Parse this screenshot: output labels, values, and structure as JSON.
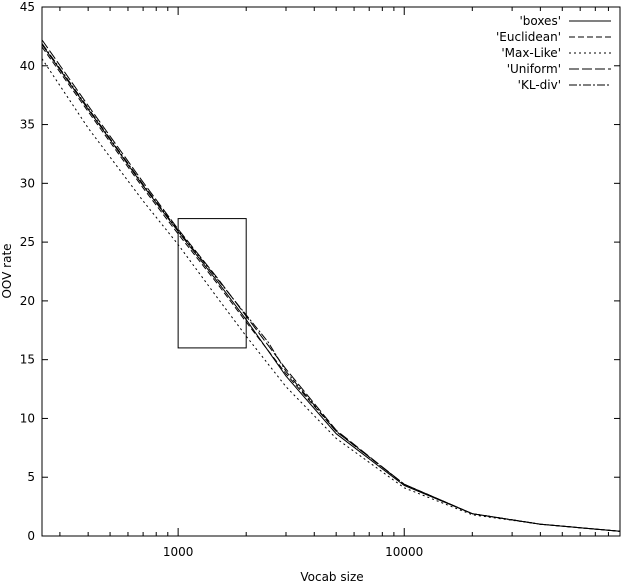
{
  "chart_data": {
    "type": "line",
    "title": "",
    "xlabel": "Vocab size",
    "ylabel": "OOV rate",
    "xscale": "log",
    "xlim": [
      250,
      90000
    ],
    "ylim": [
      0,
      45
    ],
    "x_ticks": [
      {
        "value": 1000,
        "label": "1000"
      },
      {
        "value": 10000,
        "label": "10000"
      }
    ],
    "y_ticks": [
      {
        "value": 0,
        "label": "0"
      },
      {
        "value": 5,
        "label": "5"
      },
      {
        "value": 10,
        "label": "10"
      },
      {
        "value": 15,
        "label": "15"
      },
      {
        "value": 20,
        "label": "20"
      },
      {
        "value": 25,
        "label": "25"
      },
      {
        "value": 30,
        "label": "30"
      },
      {
        "value": 35,
        "label": "35"
      },
      {
        "value": 40,
        "label": "40"
      },
      {
        "value": 45,
        "label": "45"
      }
    ],
    "grid": false,
    "legend_position": "top-right",
    "series": [
      {
        "name": "'boxes'",
        "dash": "solid",
        "x": [
          250,
          400,
          700,
          1000,
          1500,
          2000,
          3000,
          5000,
          10000,
          20000,
          40000,
          90000
        ],
        "y": [
          41.8,
          36.3,
          29.8,
          25.9,
          21.6,
          18.4,
          13.6,
          8.7,
          4.3,
          1.9,
          1.0,
          0.4
        ]
      },
      {
        "name": "'Euclidean'",
        "dash": "6,3",
        "x": [
          250,
          400,
          700,
          1000,
          1500,
          2000,
          3000,
          5000,
          10000,
          20000,
          40000,
          90000
        ],
        "y": [
          41.6,
          36.1,
          29.6,
          25.7,
          21.4,
          18.2,
          13.8,
          8.9,
          4.4,
          1.9,
          1.0,
          0.4
        ]
      },
      {
        "name": "'Max-Like'",
        "dash": "2,3",
        "x": [
          250,
          400,
          700,
          1000,
          1500,
          2000,
          3000,
          5000,
          10000,
          20000,
          40000,
          90000
        ],
        "y": [
          40.6,
          34.7,
          28.5,
          24.8,
          20.2,
          17.0,
          12.7,
          8.3,
          4.1,
          1.8,
          1.0,
          0.4
        ]
      },
      {
        "name": "'Uniform'",
        "dash": "10,3",
        "x": [
          250,
          400,
          700,
          1000,
          1500,
          2000,
          3000,
          5000,
          10000,
          20000,
          40000,
          90000
        ],
        "y": [
          42.2,
          36.6,
          30.1,
          26.1,
          21.9,
          18.7,
          14.2,
          9.0,
          4.4,
          1.9,
          1.0,
          0.4
        ]
      },
      {
        "name": "'KL-div'",
        "dash": "8,2,2,2",
        "x": [
          250,
          400,
          700,
          1000,
          1500,
          2000,
          2500,
          3000,
          5000,
          10000,
          20000,
          40000,
          90000
        ],
        "y": [
          41.9,
          36.4,
          29.9,
          26.0,
          21.8,
          18.8,
          16.5,
          14.0,
          8.9,
          4.4,
          1.9,
          1.0,
          0.4
        ]
      }
    ],
    "annotations": [
      {
        "type": "rectangle",
        "x_range": [
          1000,
          2000
        ],
        "y_range": [
          16,
          27
        ]
      }
    ]
  }
}
